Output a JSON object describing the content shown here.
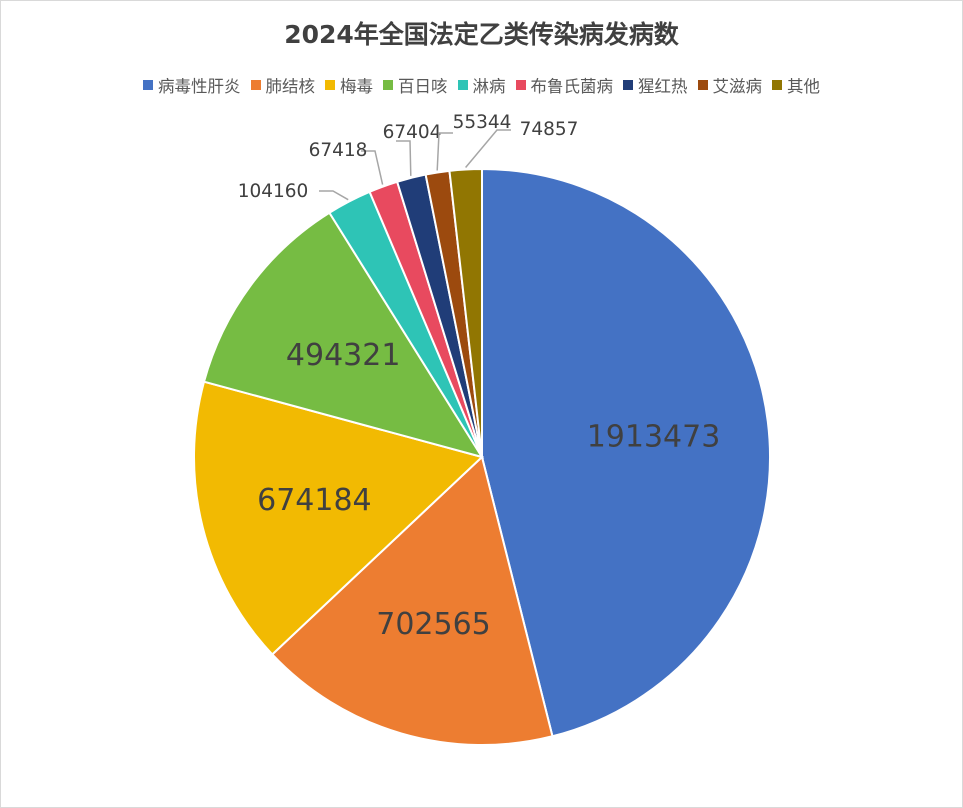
{
  "chart_data": {
    "type": "pie",
    "title": "2024年全国法定乙类传染病发病数",
    "legend_position": "top",
    "categories": [
      "病毒性肝炎",
      "肺结核",
      "梅毒",
      "百日咳",
      "淋病",
      "布鲁氏菌病",
      "猩红热",
      "艾滋病",
      "其他"
    ],
    "values": [
      1913473,
      702565,
      674184,
      494321,
      104160,
      67418,
      67404,
      55344,
      74857
    ],
    "colors": [
      "#4472C4",
      "#ED7D31",
      "#F2BA02",
      "#76BC43",
      "#2EC4B6",
      "#E84A5F",
      "#203D78",
      "#9C4A0E",
      "#917602"
    ]
  }
}
